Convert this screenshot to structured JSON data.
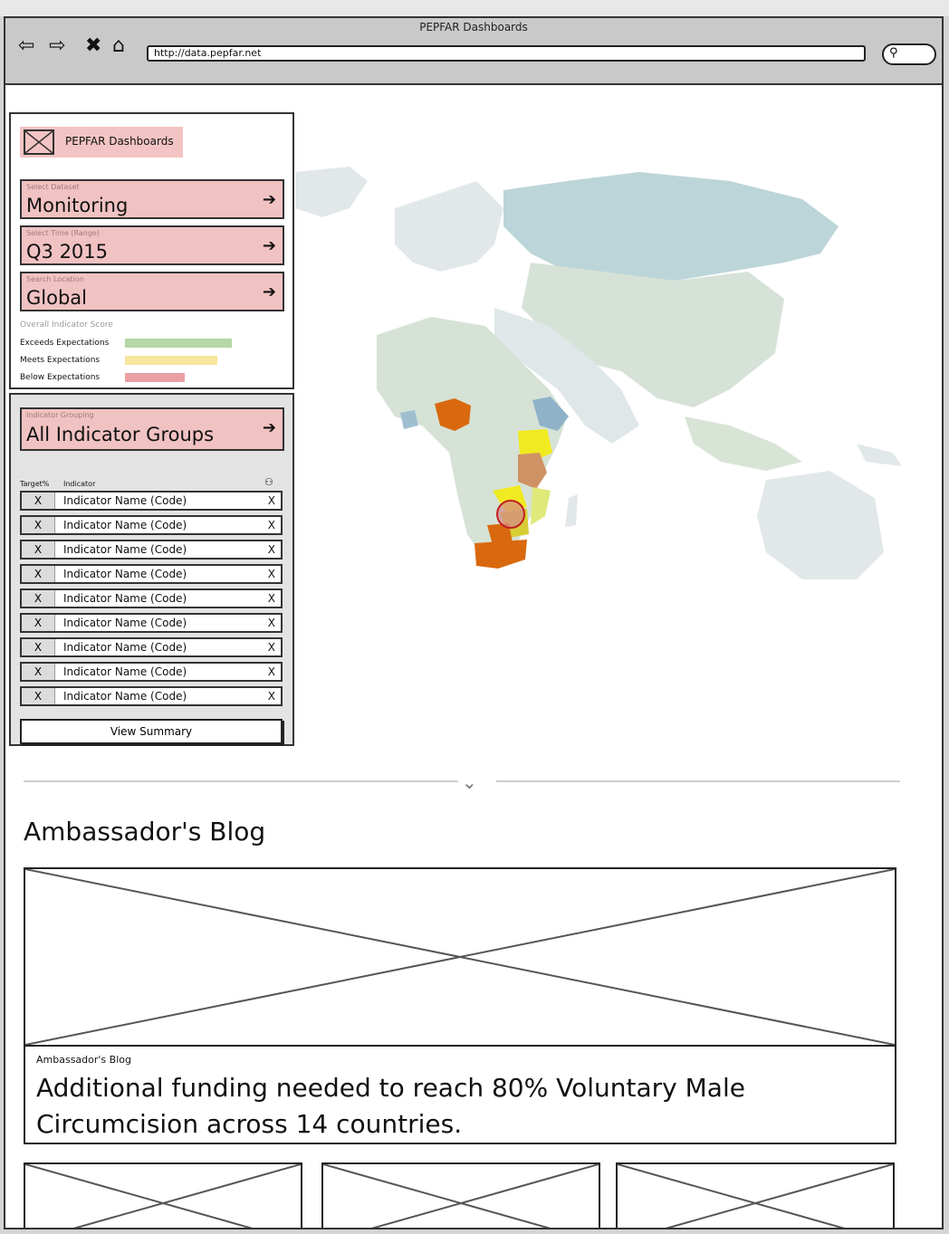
{
  "browser": {
    "title": "PEPFAR Dashboards",
    "url": "http://data.pepfar.net"
  },
  "sidebar": {
    "logo_text": "PEPFAR Dashboards",
    "dataset": {
      "caption": "Select Dataset",
      "value": "Monitoring"
    },
    "time": {
      "caption": "Select Time (Range)",
      "value": "Q3 2015"
    },
    "location": {
      "caption": "Search Location",
      "value": "Global"
    },
    "score_title": "Overall Indicator Score",
    "legend": [
      {
        "label": "Exceeds Expectations",
        "color": "#b5d6a6"
      },
      {
        "label": "Meets Expectations",
        "color": "#f7e79c"
      },
      {
        "label": "Below Expectations",
        "color": "#e8a0a4"
      }
    ]
  },
  "indicators": {
    "grouping_caption": "Indicator Grouping",
    "grouping_value": "All Indicator Groups",
    "col_target": "Target%",
    "col_indicator": "Indicator",
    "rows": [
      {
        "x": "X",
        "name": "Indicator Name (Code)",
        "remove": "X"
      },
      {
        "x": "X",
        "name": "Indicator Name (Code)",
        "remove": "X"
      },
      {
        "x": "X",
        "name": "Indicator Name (Code)",
        "remove": "X"
      },
      {
        "x": "X",
        "name": "Indicator Name (Code)",
        "remove": "X"
      },
      {
        "x": "X",
        "name": "Indicator Name (Code)",
        "remove": "X"
      },
      {
        "x": "X",
        "name": "Indicator Name (Code)",
        "remove": "X"
      },
      {
        "x": "X",
        "name": "Indicator Name (Code)",
        "remove": "X"
      },
      {
        "x": "X",
        "name": "Indicator Name (Code)",
        "remove": "X"
      },
      {
        "x": "X",
        "name": "Indicator Name (Code)",
        "remove": "X"
      }
    ],
    "view_summary": "View Summary"
  },
  "blog": {
    "section_title": "Ambassador's Blog",
    "caption_small": "Ambassador's Blog",
    "headline": "Additional funding needed to reach 80% Voluntary Male Circumcision across 14 countries."
  },
  "colors": {
    "accent_red": "#f1c2c2",
    "map_base": "#e2e8ea",
    "map_highlight_orange": "#d9690f",
    "map_highlight_yellow": "#f0ea20"
  }
}
